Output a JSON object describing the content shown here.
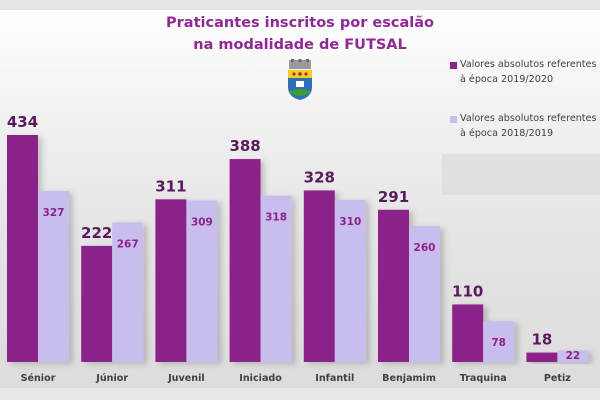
{
  "chart_data": {
    "type": "bar",
    "title": "Praticantes inscritos por escalão na modalidade de FUTSAL",
    "title_lines": [
      "Praticantes inscritos por escalão",
      "na modalidade de FUTSAL"
    ],
    "categories": [
      "Sénior",
      "Júnior",
      "Juvenil",
      "Iniciado",
      "Infantil",
      "Benjamim",
      "Traquina",
      "Petiz"
    ],
    "series": [
      {
        "name": "Valores absolutos referentes à época 2019/2020",
        "legend_lines": [
          "Valores absolutos referentes",
          "à época 2019/2020"
        ],
        "color": "#8b2289",
        "values": [
          434,
          222,
          311,
          388,
          328,
          291,
          110,
          18
        ]
      },
      {
        "name": "Valores absolutos referentes à época 2018/2019",
        "legend_lines": [
          "Valores absolutos referentes",
          "à época 2018/2019"
        ],
        "color": "#c9bdee",
        "values": [
          327,
          267,
          309,
          318,
          310,
          260,
          78,
          22
        ]
      }
    ],
    "xlabel": "",
    "ylabel": "",
    "ylim": [
      0,
      434
    ],
    "grid": false,
    "legend_position": "right",
    "data_labels": true
  },
  "colors": {
    "title": "#8e2a94",
    "label_2019": "#5a1a5e",
    "label_2018": "#8b2289"
  },
  "logo": "municipal-crest"
}
